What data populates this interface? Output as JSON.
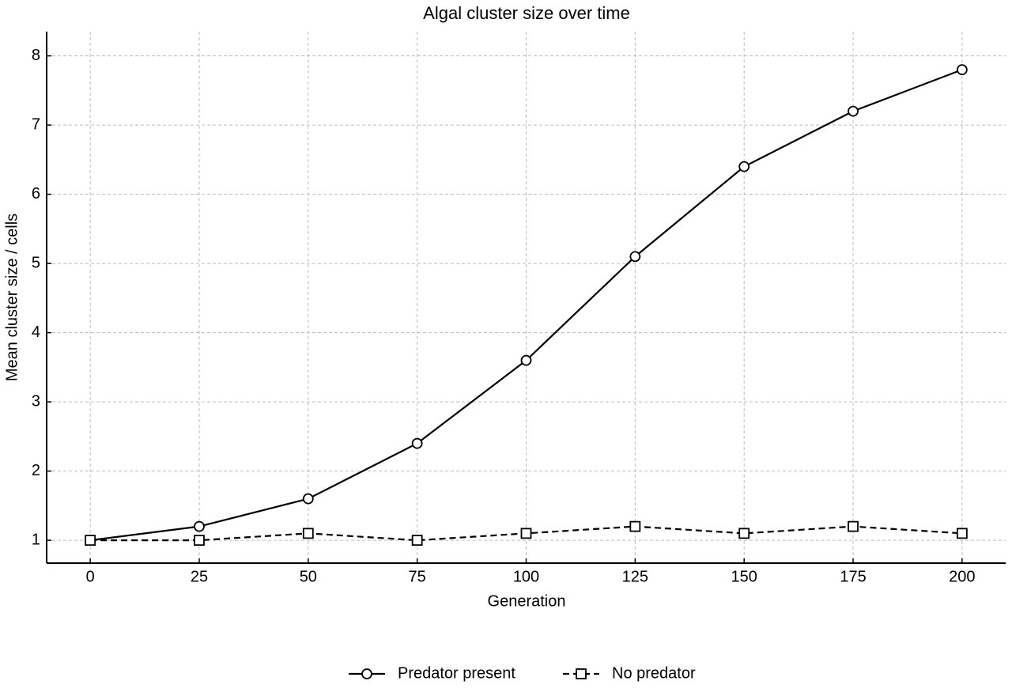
{
  "chart_data": {
    "type": "line",
    "title": "Algal cluster size over time",
    "x_label": "Generation",
    "y_label": "Mean cluster size / cells",
    "x": [
      0,
      25,
      50,
      75,
      100,
      125,
      150,
      175,
      200
    ],
    "series": [
      {
        "name": "Predator present",
        "color": "#000000",
        "marker": "circle",
        "linestyle": "solid",
        "values": [
          1.0,
          1.2,
          1.6,
          2.4,
          3.6,
          5.1,
          6.4,
          7.2,
          7.8
        ]
      },
      {
        "name": "No predator",
        "color": "#000000",
        "marker": "square",
        "linestyle": "dashed",
        "values": [
          1.0,
          1.0,
          1.1,
          1.0,
          1.1,
          1.2,
          1.1,
          1.2,
          1.1
        ]
      }
    ],
    "xlim": [
      -10,
      210
    ],
    "ylim": [
      0.67,
      8.35
    ],
    "xticks": [
      0,
      25,
      50,
      75,
      100,
      125,
      150,
      175,
      200
    ],
    "yticks": [
      1,
      2,
      3,
      4,
      5,
      6,
      7,
      8
    ],
    "grid": true,
    "legend": "below"
  }
}
